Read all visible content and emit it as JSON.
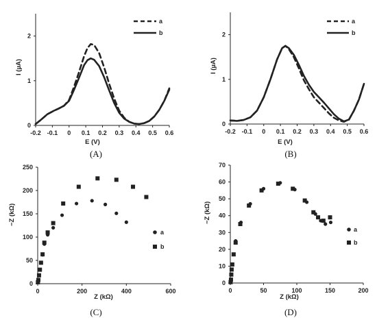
{
  "chart_data": [
    {
      "panel": "A",
      "type": "line",
      "caption": "(A)",
      "xlabel": "E (V)",
      "ylabel": "I (µA)",
      "xlim": [
        -0.2,
        0.6
      ],
      "ylim": [
        0,
        2.5
      ],
      "xticks": [
        "-0.2",
        "-0.1",
        "0",
        "0.1",
        "0.2",
        "0.3",
        "0.4",
        "0.5",
        "0.6"
      ],
      "yticks": [
        "0",
        "1",
        "2"
      ],
      "legend_position": "top-right",
      "series": [
        {
          "name": "a",
          "style": "dashed",
          "x": [
            -0.2,
            -0.17,
            -0.13,
            -0.09,
            -0.06,
            -0.03,
            0.0,
            0.03,
            0.06,
            0.09,
            0.11,
            0.13,
            0.15,
            0.18,
            0.21,
            0.24,
            0.27,
            0.3,
            0.33,
            0.36,
            0.39,
            0.42,
            0.45,
            0.48,
            0.51,
            0.54,
            0.57,
            0.6
          ],
          "y": [
            0.03,
            0.12,
            0.25,
            0.33,
            0.38,
            0.44,
            0.57,
            0.87,
            1.2,
            1.55,
            1.73,
            1.82,
            1.8,
            1.62,
            1.3,
            0.93,
            0.6,
            0.33,
            0.17,
            0.08,
            0.04,
            0.03,
            0.05,
            0.1,
            0.2,
            0.35,
            0.55,
            0.83
          ]
        },
        {
          "name": "b",
          "style": "solid",
          "x": [
            -0.2,
            -0.17,
            -0.13,
            -0.09,
            -0.06,
            -0.03,
            0.0,
            0.03,
            0.06,
            0.09,
            0.11,
            0.13,
            0.15,
            0.18,
            0.21,
            0.24,
            0.27,
            0.3,
            0.33,
            0.36,
            0.39,
            0.42,
            0.45,
            0.48,
            0.51,
            0.54,
            0.57,
            0.6
          ],
          "y": [
            0.03,
            0.12,
            0.25,
            0.33,
            0.38,
            0.44,
            0.55,
            0.8,
            1.07,
            1.35,
            1.46,
            1.5,
            1.47,
            1.33,
            1.08,
            0.78,
            0.5,
            0.28,
            0.15,
            0.08,
            0.04,
            0.03,
            0.05,
            0.1,
            0.2,
            0.35,
            0.55,
            0.8
          ]
        }
      ]
    },
    {
      "panel": "B",
      "type": "line",
      "caption": "(B)",
      "xlabel": "E (V)",
      "ylabel": "I (µA)",
      "xlim": [
        -0.2,
        0.6
      ],
      "ylim": [
        0,
        2.5
      ],
      "xticks": [
        "-0.2",
        "-0.1",
        "0",
        "0.1",
        "0.2",
        "0.3",
        "0.4",
        "0.5",
        "0.6"
      ],
      "yticks": [
        "0",
        "1",
        "2"
      ],
      "legend_position": "top-right",
      "series": [
        {
          "name": "a",
          "style": "dashed",
          "x": [
            -0.2,
            -0.16,
            -0.12,
            -0.08,
            -0.04,
            0.0,
            0.04,
            0.08,
            0.11,
            0.13,
            0.15,
            0.18,
            0.21,
            0.24,
            0.27,
            0.3,
            0.33,
            0.36,
            0.39,
            0.42,
            0.45,
            0.48,
            0.51,
            0.54,
            0.57,
            0.6
          ],
          "y": [
            0.08,
            0.07,
            0.09,
            0.15,
            0.3,
            0.6,
            1.0,
            1.45,
            1.7,
            1.75,
            1.68,
            1.5,
            1.25,
            0.98,
            0.78,
            0.6,
            0.48,
            0.36,
            0.24,
            0.14,
            0.08,
            0.05,
            0.1,
            0.3,
            0.55,
            0.9
          ]
        },
        {
          "name": "b",
          "style": "solid",
          "x": [
            -0.2,
            -0.16,
            -0.12,
            -0.08,
            -0.04,
            0.0,
            0.04,
            0.08,
            0.11,
            0.13,
            0.15,
            0.18,
            0.21,
            0.24,
            0.27,
            0.3,
            0.33,
            0.36,
            0.39,
            0.42,
            0.45,
            0.48,
            0.51,
            0.54,
            0.57,
            0.6
          ],
          "y": [
            0.08,
            0.07,
            0.09,
            0.15,
            0.3,
            0.6,
            1.0,
            1.45,
            1.7,
            1.75,
            1.7,
            1.55,
            1.33,
            1.08,
            0.88,
            0.72,
            0.6,
            0.48,
            0.35,
            0.22,
            0.12,
            0.06,
            0.1,
            0.3,
            0.55,
            0.9
          ]
        }
      ]
    },
    {
      "panel": "C",
      "type": "scatter",
      "caption": "(C)",
      "xlabel": "Z (kΩ)",
      "ylabel": "−Z (kΩ)",
      "xlim": [
        0,
        600
      ],
      "ylim": [
        0,
        250
      ],
      "xticks": [
        "0",
        "200",
        "400",
        "600"
      ],
      "yticks": [
        "0",
        "50",
        "100",
        "150",
        "200",
        "250"
      ],
      "legend_position": "bottom-right",
      "series": [
        {
          "name": "a",
          "marker": "circle",
          "x": [
            1,
            3,
            6,
            10,
            15,
            22,
            30,
            45,
            70,
            110,
            175,
            245,
            305,
            355,
            400
          ],
          "y": [
            3,
            8,
            18,
            30,
            45,
            62,
            85,
            105,
            120,
            147,
            172,
            178,
            170,
            151,
            132
          ]
        },
        {
          "name": "b",
          "marker": "square",
          "x": [
            1,
            3,
            6,
            10,
            15,
            22,
            30,
            45,
            70,
            115,
            185,
            270,
            355,
            430,
            490
          ],
          "y": [
            3,
            8,
            18,
            30,
            45,
            63,
            88,
            110,
            130,
            172,
            208,
            226,
            223,
            208,
            186
          ]
        }
      ]
    },
    {
      "panel": "D",
      "type": "scatter",
      "caption": "(D)",
      "xlabel": "Z (kΩ)",
      "ylabel": "−Z (kΩ)",
      "xlim": [
        0,
        200
      ],
      "ylim": [
        0,
        70
      ],
      "xticks": [
        "0",
        "50",
        "100",
        "150",
        "200"
      ],
      "yticks": [
        "0",
        "10",
        "20",
        "30",
        "40",
        "50",
        "60",
        "70"
      ],
      "legend_position": "bottom-right",
      "series": [
        {
          "name": "a",
          "marker": "circle",
          "x": [
            0.5,
            1,
            1.5,
            2,
            3,
            5,
            8,
            16,
            30,
            50,
            75,
            97,
            115,
            128,
            136,
            143,
            151
          ],
          "y": [
            0.5,
            2,
            5,
            8,
            11,
            17,
            25,
            36,
            47,
            56,
            59.5,
            55.5,
            48,
            41,
            37,
            35,
            36
          ]
        },
        {
          "name": "b",
          "marker": "square",
          "x": [
            0.5,
            1,
            1.5,
            2,
            3,
            5,
            8,
            15,
            28,
            47,
            72,
            94,
            112,
            125,
            132,
            140,
            150
          ],
          "y": [
            0.5,
            2,
            5,
            8,
            11,
            17,
            24,
            35,
            46,
            55,
            59,
            56,
            49,
            42,
            39,
            37,
            39
          ]
        }
      ]
    }
  ]
}
